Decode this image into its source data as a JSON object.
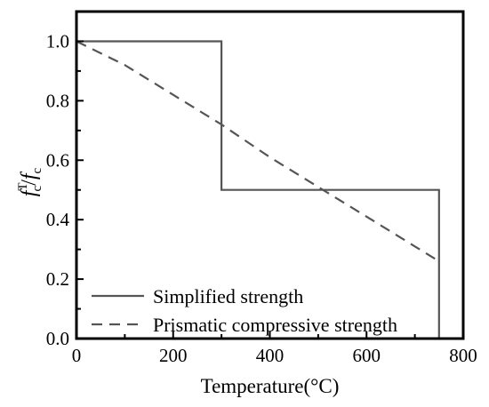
{
  "chart_data": {
    "type": "line",
    "xlabel": "Temperature(°C)",
    "ylabel": {
      "base": "f",
      "sup": "T",
      "sub": "c",
      "sep": "/",
      "base2": "f",
      "sub2": "c"
    },
    "xlim": [
      0,
      800
    ],
    "ylim": [
      0,
      1.1
    ],
    "xticks": [
      0,
      200,
      400,
      600,
      800
    ],
    "yticks": [
      0.0,
      0.2,
      0.4,
      0.6,
      0.8,
      1.0
    ],
    "xtick_labels": [
      "0",
      "200",
      "400",
      "600",
      "800"
    ],
    "ytick_labels": [
      "0.0",
      "0.2",
      "0.4",
      "0.6",
      "0.8",
      "1.0"
    ],
    "grid": false,
    "legend_position": "bottom-left",
    "colors": {
      "axis": "#000000",
      "series": "#555555"
    },
    "series": [
      {
        "name": "Simplified strength",
        "style": "solid",
        "x": [
          0,
          300,
          300,
          750,
          750
        ],
        "y": [
          1.0,
          1.0,
          0.5,
          0.5,
          0.0
        ]
      },
      {
        "name": "Prismatic compressive strength",
        "style": "dashed",
        "x": [
          0,
          100,
          200,
          300,
          400,
          500,
          600,
          700,
          750
        ],
        "y": [
          1.0,
          0.92,
          0.82,
          0.72,
          0.61,
          0.51,
          0.41,
          0.31,
          0.26
        ]
      }
    ]
  }
}
